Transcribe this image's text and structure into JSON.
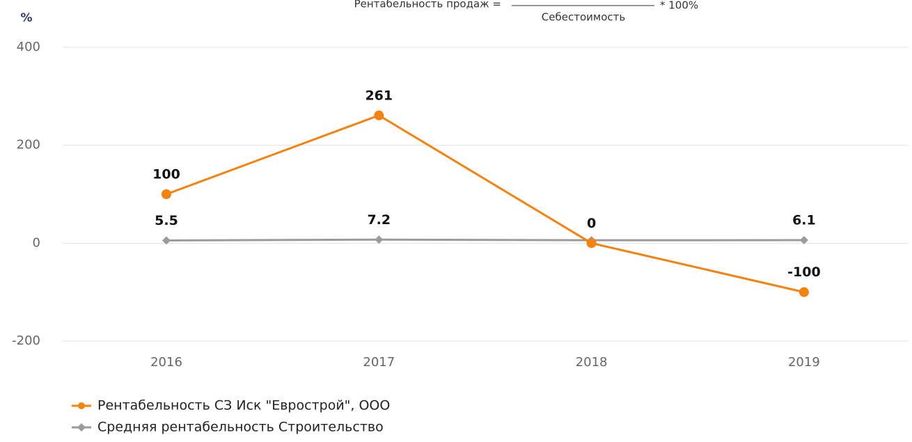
{
  "chart_data": {
    "type": "line",
    "formula": {
      "left": "Рентабельность продаж  =",
      "denominator": "Себестоимость",
      "right": "* 100%"
    },
    "y_label": "%",
    "categories": [
      "2016",
      "2017",
      "2018",
      "2019"
    ],
    "series": [
      {
        "name": "Рентабельность СЗ Иск \"Еврострой\", ООО",
        "color": "#f5820d",
        "marker": "circle",
        "values": [
          100,
          261,
          0,
          -100
        ]
      },
      {
        "name": "Средняя рентабельность Строительство",
        "color": "#9b9b9b",
        "marker": "diamond",
        "values": [
          5.5,
          7.2,
          6,
          6.1
        ],
        "value_labels": [
          "5.5",
          "7.2",
          null,
          "6.1"
        ]
      }
    ],
    "ylim": [
      -200,
      400
    ],
    "yticks": [
      -200,
      0,
      200,
      400
    ],
    "grid": true
  }
}
